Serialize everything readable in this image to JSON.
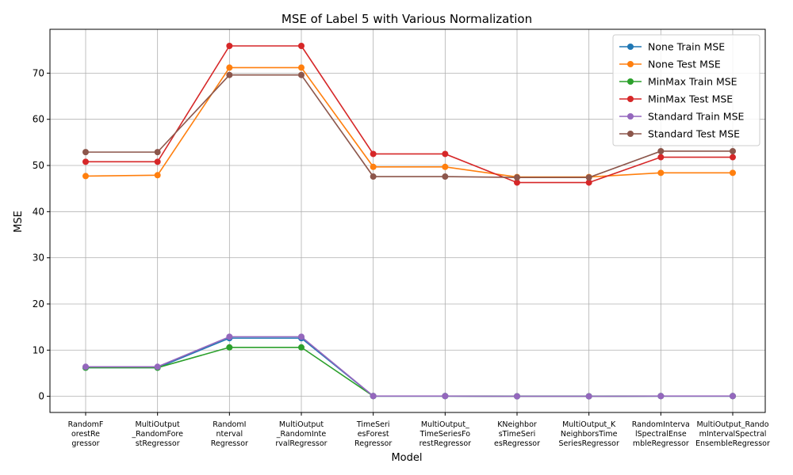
{
  "chart_data": {
    "type": "line",
    "title": "MSE of Label 5 with Various Normalization",
    "xlabel": "Model",
    "ylabel": "MSE",
    "ylim": [
      -3.5,
      79.5
    ],
    "yticks": [
      0,
      10,
      20,
      30,
      40,
      50,
      60,
      70
    ],
    "grid": true,
    "legend_position": "top-right",
    "categories": [
      "RandomF\norestRe\ngressor",
      "MultiOutput\n_RandomFore\nstRegressor",
      "RandomI\nnterval\nRegressor",
      "MultiOutput\n_RandomInte\nrvalRegressor",
      "TimeSeri\nesForest\nRegressor",
      "MultiOutput_\nTimeSeriesFo\nrestRegressor",
      "KNeighbor\nsTimeSeri\nesRegressor",
      "MultiOutput_K\nNeighborsTime\nSeriesRegressor",
      "RandomInterva\nlSpectralEnse\nmbleRegressor",
      "MultiOutput_Rando\nmIntervalSpectral\nEnsembleRegressor"
    ],
    "series": [
      {
        "name": "None Train MSE",
        "color": "#1f77b4",
        "values": [
          6.2,
          6.2,
          12.6,
          12.6,
          0.05,
          0.05,
          0.0,
          0.0,
          0.05,
          0.05
        ]
      },
      {
        "name": "None Test MSE",
        "color": "#ff7f0e",
        "values": [
          47.7,
          47.9,
          71.2,
          71.2,
          49.7,
          49.7,
          47.5,
          47.5,
          48.4,
          48.4
        ]
      },
      {
        "name": "MinMax Train MSE",
        "color": "#2ca02c",
        "values": [
          6.2,
          6.2,
          10.6,
          10.6,
          0.05,
          0.05,
          0.0,
          0.0,
          0.05,
          0.05
        ]
      },
      {
        "name": "MinMax Test MSE",
        "color": "#d62728",
        "values": [
          50.8,
          50.8,
          75.9,
          75.9,
          52.5,
          52.5,
          46.3,
          46.3,
          51.8,
          51.8
        ]
      },
      {
        "name": "Standard Train MSE",
        "color": "#9467bd",
        "values": [
          6.4,
          6.4,
          12.9,
          12.9,
          0.05,
          0.05,
          0.0,
          0.0,
          0.05,
          0.05
        ]
      },
      {
        "name": "Standard Test MSE",
        "color": "#8c564b",
        "values": [
          52.9,
          52.9,
          69.6,
          69.6,
          47.6,
          47.6,
          47.4,
          47.4,
          53.1,
          53.1
        ]
      }
    ]
  }
}
